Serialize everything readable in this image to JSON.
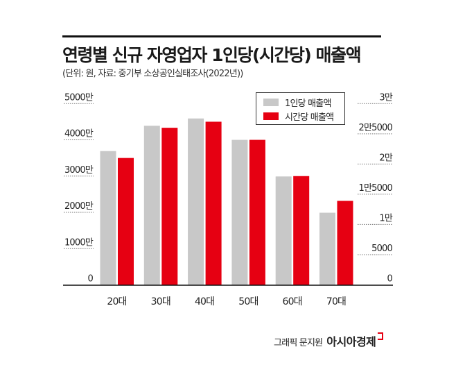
{
  "title": "연령별 신규 자영업자 1인당(시간당) 매출액",
  "subtitle": "(단위: 원, 자료: 중기부 소상공인실태조사(2022년))",
  "credit": {
    "label": "그래픽 문지원",
    "brand": "아시아경제"
  },
  "colors": {
    "per_person": "#c8c8c8",
    "per_hour": "#e60012"
  },
  "chart_data": {
    "type": "bar",
    "categories": [
      "20대",
      "30대",
      "40대",
      "50대",
      "60대",
      "70대"
    ],
    "series": [
      {
        "name": "1인당 매출액",
        "axis": "left",
        "values": [
          36900000,
          43900000,
          45900000,
          40000000,
          29900000,
          19900000
        ]
      },
      {
        "name": "시간당 매출액",
        "axis": "right",
        "values": [
          21000,
          26000,
          27000,
          24000,
          18000,
          13900
        ]
      }
    ],
    "left_axis": {
      "ylim": [
        0,
        50000000
      ],
      "tick_labels": [
        "0",
        "1000만",
        "2000만",
        "3000만",
        "4000만",
        "5000만"
      ]
    },
    "right_axis": {
      "ylim": [
        0,
        30000
      ],
      "tick_labels": [
        "0",
        "5000",
        "1만",
        "1만5000",
        "2만",
        "2만5000",
        "3만"
      ]
    },
    "legend": "top-right",
    "grid": false
  }
}
